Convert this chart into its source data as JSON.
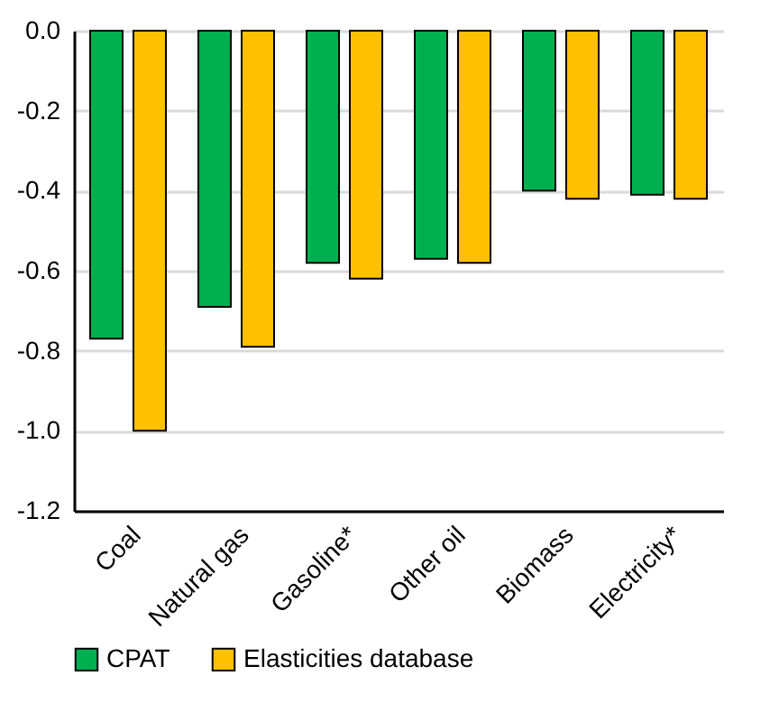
{
  "chart_data": {
    "type": "bar",
    "categories": [
      "Coal",
      "Natural gas",
      "Gasoline*",
      "Other oil",
      "Biomass",
      "Electricity*"
    ],
    "series": [
      {
        "name": "CPAT",
        "color": "#00b050",
        "values": [
          -0.77,
          -0.69,
          -0.58,
          -0.57,
          -0.4,
          -0.41
        ]
      },
      {
        "name": "Elasticities database",
        "color": "#ffc000",
        "values": [
          -1.0,
          -0.79,
          -0.62,
          -0.58,
          -0.42,
          -0.42
        ]
      }
    ],
    "ylim": [
      -1.2,
      0
    ],
    "yticks": [
      {
        "value": 0,
        "label": "0.0"
      },
      -0.2,
      -0.4,
      -0.6,
      -0.8,
      {
        "value": -1,
        "label": "-1.0"
      },
      -1.2
    ],
    "grid": "y",
    "legend": "bottom"
  }
}
